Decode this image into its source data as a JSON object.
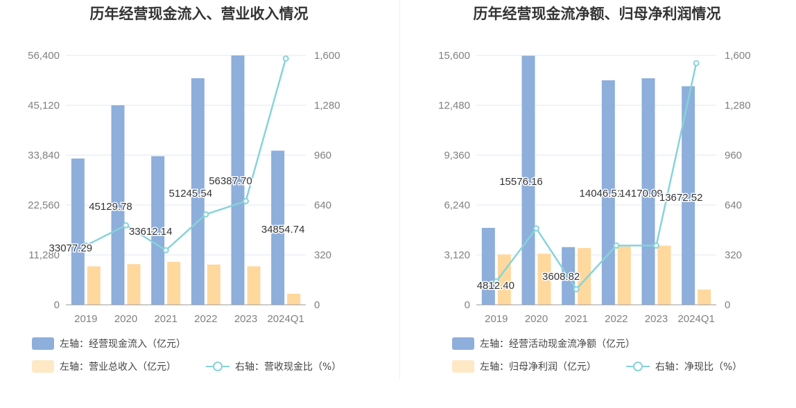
{
  "colors": {
    "bar1": "#8eaedb",
    "bar2": "#ffd89e",
    "line": "#86d3d9",
    "grid": "#e3e7f2",
    "axis": "#999999"
  },
  "chart_data": [
    {
      "type": "bar",
      "title": "历年经营现金流入、营业收入情况",
      "categories": [
        "2019",
        "2020",
        "2021",
        "2022",
        "2023",
        "2024Q1"
      ],
      "left_ticks": [
        "0",
        "11,280",
        "22,560",
        "33,840",
        "45,120",
        "56,400"
      ],
      "right_ticks": [
        "0",
        "320",
        "640",
        "960",
        "1,280",
        "1,600"
      ],
      "ylim_left": [
        0,
        56400
      ],
      "ylim_right": [
        0,
        1600
      ],
      "series": [
        {
          "name": "左轴：经营现金流入（亿元）",
          "kind": "bar",
          "axis": "left",
          "values": [
            33077.29,
            45129.78,
            33612.14,
            51245.54,
            56387.7,
            34854.74
          ],
          "labels": [
            "33077.29",
            "45129.78",
            "33612.14",
            "51245.54",
            "56387.70",
            "34854.74"
          ]
        },
        {
          "name": "左轴：营业总收入（亿元）",
          "kind": "bar",
          "axis": "left",
          "values": [
            8700,
            9200,
            9700,
            9100,
            8700,
            2500
          ]
        },
        {
          "name": "右轴：营收现金比（%）",
          "kind": "line",
          "axis": "right",
          "values": [
            380,
            510,
            350,
            580,
            665,
            1580
          ]
        }
      ]
    },
    {
      "type": "bar",
      "title": "历年经营现金流净额、归母净利润情况",
      "categories": [
        "2019",
        "2020",
        "2021",
        "2022",
        "2023",
        "2024Q1"
      ],
      "left_ticks": [
        "0",
        "3,120",
        "6,240",
        "9,360",
        "12,480",
        "15,600"
      ],
      "right_ticks": [
        "0",
        "320",
        "640",
        "960",
        "1,280",
        "1,600"
      ],
      "ylim_left": [
        0,
        15600
      ],
      "ylim_right": [
        0,
        1600
      ],
      "series": [
        {
          "name": "左轴：经营活动现金流净额（亿元）",
          "kind": "bar",
          "axis": "left",
          "values": [
            4812.4,
            15576.16,
            3608.82,
            14046.51,
            14170.09,
            13672.52
          ],
          "labels": [
            "4812.40",
            "15576.16",
            "3608.82",
            "14046.51",
            "14170.09",
            "13672.52"
          ]
        },
        {
          "name": "左轴：归母净利润（亿元）",
          "kind": "bar",
          "axis": "left",
          "values": [
            3150,
            3200,
            3550,
            3650,
            3700,
            950
          ]
        },
        {
          "name": "右轴：净现比（%）",
          "kind": "line",
          "axis": "right",
          "values": [
            150,
            490,
            100,
            380,
            380,
            1550
          ]
        }
      ]
    }
  ]
}
